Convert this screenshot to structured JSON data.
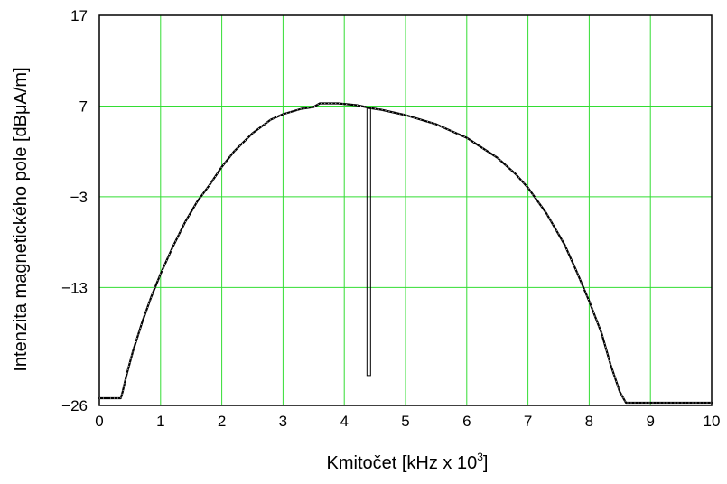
{
  "chart_data": {
    "type": "line",
    "xlabel": "Kmitočet  [kHz x 10",
    "xlabel_sup": "3",
    "xlabel_close": "]",
    "ylabel": "Intenzita magnetického pole [dBμA/m]",
    "xlim": [
      0,
      10
    ],
    "ylim": [
      -26,
      17
    ],
    "x_ticks": [
      "0",
      "1",
      "2",
      "3",
      "4",
      "5",
      "6",
      "7",
      "8",
      "9",
      "10"
    ],
    "y_ticks": [
      "17",
      "7",
      "−3",
      "−13",
      "−26"
    ],
    "y_tick_values": [
      17,
      7,
      -3,
      -13,
      -26
    ],
    "grid": true,
    "series": [
      {
        "x": [
          -0.05,
          0.35,
          0.38,
          0.45,
          0.55,
          0.7,
          0.85,
          1.0,
          1.2,
          1.4,
          1.6,
          1.8,
          2.0,
          2.2,
          2.5,
          2.8,
          3.0,
          3.3,
          3.5,
          3.6,
          3.9,
          4.2,
          4.35,
          4.4,
          4.6,
          5.0,
          5.5,
          6.0,
          6.5,
          6.8,
          7.0,
          7.3,
          7.6,
          7.8,
          8.0,
          8.2,
          8.35,
          8.5,
          8.6,
          10.0
        ],
        "y": [
          -25.2,
          -25.2,
          -24.5,
          -22.5,
          -20.0,
          -16.8,
          -14.0,
          -11.5,
          -8.5,
          -5.8,
          -3.5,
          -1.7,
          0.3,
          2.0,
          4.0,
          5.5,
          6.1,
          6.7,
          6.9,
          7.3,
          7.3,
          7.1,
          6.9,
          6.8,
          6.6,
          6.0,
          5.0,
          3.5,
          1.3,
          -0.5,
          -2.0,
          -4.8,
          -8.3,
          -11.3,
          -14.5,
          -18.0,
          -21.5,
          -24.5,
          -25.7,
          -25.7
        ]
      }
    ],
    "spike": {
      "x": 4.4,
      "y_top": 6.9,
      "y_bottom": -22.7
    }
  }
}
